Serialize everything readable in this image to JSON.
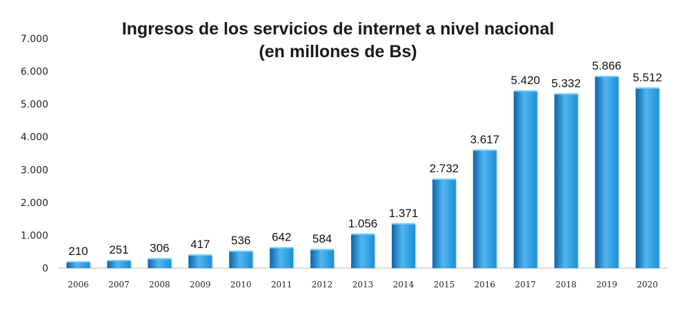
{
  "chart_data": {
    "type": "bar",
    "title": "Ingresos de los servicios de internet a nivel nacional",
    "subtitle": "(en millones de Bs)",
    "categories": [
      "2006",
      "2007",
      "2008",
      "2009",
      "2010",
      "2011",
      "2012",
      "2013",
      "2014",
      "2015",
      "2016",
      "2017",
      "2018",
      "2019",
      "2020"
    ],
    "values": [
      210,
      251,
      306,
      417,
      536,
      642,
      584,
      1056,
      1371,
      2732,
      3617,
      5420,
      5332,
      5866,
      5512
    ],
    "data_labels": [
      "210",
      "251",
      "306",
      "417",
      "536",
      "642",
      "584",
      "1.056",
      "1.371",
      "2.732",
      "3.617",
      "5.420",
      "5.332",
      "5.866",
      "5.512"
    ],
    "ylim": [
      0,
      7000
    ],
    "yticks": [
      0,
      1000,
      2000,
      3000,
      4000,
      5000,
      6000,
      7000
    ],
    "ytick_labels": [
      "0",
      "1.000",
      "2.000",
      "3.000",
      "4.000",
      "5.000",
      "6.000",
      "7.000"
    ],
    "xlabel": "",
    "ylabel": "",
    "grid": false,
    "legend": "none",
    "bar_color": "#1a8fd6",
    "bar_color_light": "#52b6ef",
    "bar_color_dark": "#0a64a8"
  }
}
